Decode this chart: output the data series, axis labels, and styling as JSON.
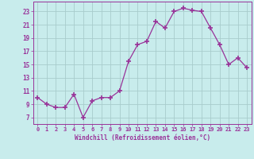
{
  "x": [
    0,
    1,
    2,
    3,
    4,
    5,
    6,
    7,
    8,
    9,
    10,
    11,
    12,
    13,
    14,
    15,
    16,
    17,
    18,
    19,
    20,
    21,
    22,
    23
  ],
  "y": [
    10,
    9,
    8.5,
    8.5,
    10.5,
    7,
    9.5,
    10,
    10,
    11,
    15.5,
    18,
    18.5,
    21.5,
    20.5,
    23,
    23.5,
    23.2,
    23,
    20.5,
    18,
    15,
    16,
    14.5
  ],
  "line_color": "#993399",
  "marker_color": "#993399",
  "bg_color": "#c8ecec",
  "grid_color": "#a8cccc",
  "xlabel": "Windchill (Refroidissement éolien,°C)",
  "ylabel_ticks": [
    7,
    9,
    11,
    13,
    15,
    17,
    19,
    21,
    23
  ],
  "ylim": [
    6.0,
    24.5
  ],
  "xlim": [
    -0.5,
    23.5
  ],
  "xtick_labels": [
    "0",
    "1",
    "2",
    "3",
    "4",
    "5",
    "6",
    "7",
    "8",
    "9",
    "10",
    "11",
    "12",
    "13",
    "14",
    "15",
    "16",
    "17",
    "18",
    "19",
    "20",
    "21",
    "22",
    "23"
  ],
  "tick_color": "#993399",
  "label_color": "#993399",
  "font_family": "monospace"
}
